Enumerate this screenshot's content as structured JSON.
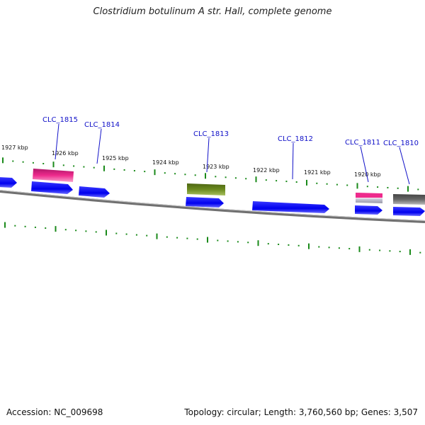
{
  "title": "Clostridium botulinum A str. Hall, complete genome",
  "footer": {
    "accession": "Accession: NC_009698",
    "summary": "Topology: circular; Length: 3,760,560 bp; Genes: 3,507"
  },
  "colors": {
    "cds_blue": "#0000ee",
    "rna_pink": "#ee2a8c",
    "feature_olive": "#6b8a1e",
    "feature_gray": "#666666",
    "ticks_green": "#1a8a1a",
    "backbone": "#808080",
    "label_blue": "#1010c8"
  },
  "kbp_labels": [
    "1927 kbp",
    "1926 kbp",
    "1925 kbp",
    "1924 kbp",
    "1923 kbp",
    "1922 kbp",
    "1921 kbp",
    "1920 kbp"
  ],
  "gene_labels": [
    "CLC_1815",
    "CLC_1814",
    "CLC_1813",
    "CLC_1812",
    "CLC_1811",
    "CLC_1810"
  ]
}
